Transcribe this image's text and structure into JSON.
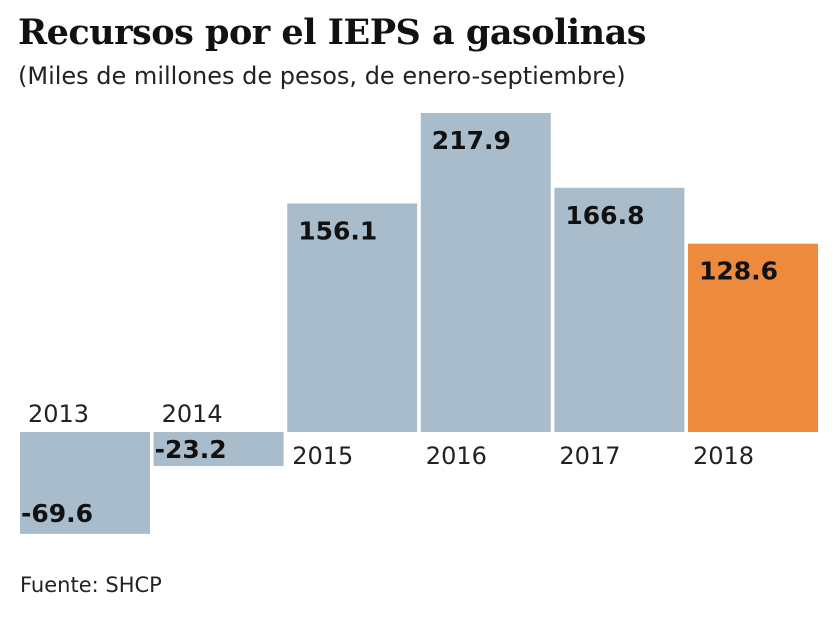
{
  "chart_data": {
    "type": "bar",
    "title": "Recursos por el IEPS a gasolinas",
    "subtitle": "(Miles de millones de pesos, de enero-septiembre)",
    "categories": [
      "2013",
      "2014",
      "2015",
      "2016",
      "2017",
      "2018"
    ],
    "values": [
      -69.6,
      -23.2,
      156.1,
      217.9,
      166.8,
      128.6
    ],
    "data_labels": [
      "-69.6",
      "-23.2",
      "156.1",
      "217.9",
      "166.8",
      "128.6"
    ],
    "colors": [
      "#a9bccb",
      "#a9bccb",
      "#a9bccb",
      "#a9bccb",
      "#a9bccb",
      "#ee8a3e"
    ],
    "grid": false,
    "source": "Fuente: SHCP"
  }
}
